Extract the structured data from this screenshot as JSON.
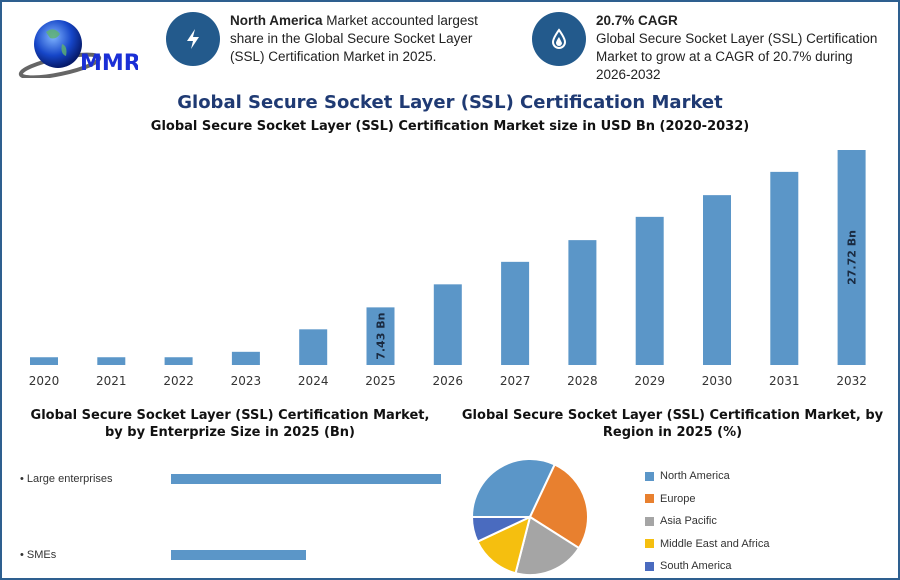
{
  "logo": {
    "text": "MMR"
  },
  "info": [
    {
      "icon": "lightning-icon",
      "bold": "North America",
      "text": " Market accounted largest share in the Global Secure Socket Layer (SSL) Certification Market in 2025."
    },
    {
      "icon": "drop-icon",
      "bold": "20.7% CAGR",
      "text": "Global Secure Socket Layer (SSL) Certification Market to grow at a CAGR of 20.7% during 2026-2032"
    }
  ],
  "title": "Global Secure Socket Layer (SSL) Certification Market",
  "colors": {
    "bar": "#5b96c8",
    "accent": "#235a8c",
    "title": "#1f3a73"
  },
  "chart_data": [
    {
      "type": "bar",
      "title": "Global Secure Socket Layer (SSL) Certification Market size in USD Bn (2020-2032)",
      "categories": [
        "2020",
        "2021",
        "2022",
        "2023",
        "2024",
        "2025",
        "2026",
        "2027",
        "2028",
        "2029",
        "2030",
        "2031",
        "2032"
      ],
      "values": [
        1.0,
        1.0,
        1.0,
        1.7,
        4.6,
        7.43,
        10.4,
        13.3,
        16.1,
        19.1,
        21.9,
        24.9,
        27.72
      ],
      "data_labels": {
        "5": "7.43 Bn",
        "12": "27.72 Bn"
      },
      "grid": false
    },
    {
      "type": "bar",
      "orientation": "horizontal",
      "title": "Global Secure Socket Layer (SSL) Certification Market, by by Enterprize Size in 2025 (Bn)",
      "categories": [
        "• Large enterprises",
        "• SMEs"
      ],
      "values": [
        4.95,
        2.48
      ]
    },
    {
      "type": "pie",
      "title": "Global Secure Socket Layer (SSL) Certification Market, by Region in 2025 (%)",
      "legend_position": "right",
      "slices": [
        {
          "name": "North America",
          "value": 32,
          "color": "#5b96c8"
        },
        {
          "name": "Europe",
          "value": 27,
          "color": "#e8802f"
        },
        {
          "name": "Asia Pacific",
          "value": 20,
          "color": "#a5a5a5"
        },
        {
          "name": "Middle East and Africa",
          "value": 14,
          "color": "#f5bf0f"
        },
        {
          "name": "South America",
          "value": 7,
          "color": "#4a6bbf"
        }
      ]
    }
  ]
}
